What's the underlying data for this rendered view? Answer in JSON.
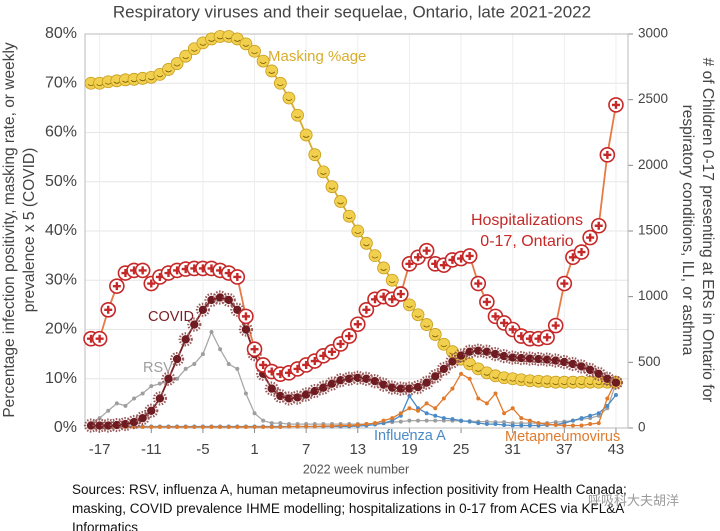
{
  "chart_data": {
    "type": "line",
    "title": "Respiratory viruses and their sequelae, Ontario, late 2021-2022",
    "x_label": "2022 week number",
    "y_label": "Percentage infection positivity, masking rate, or weekly prevalence x 5 (COVID)",
    "y2_label": "# of Children 0-17 presenting at ERs in Ontario for respiratory conditions, ILI, or asthma",
    "source": "Sources: RSV, influenza A, human metapneumovirus infection positivity from Health Canada; masking, COVID prevalence IHME modelling; hospitalizations in 0-17 from ACES via KFL&A Informatics",
    "watermark": "呼吸科大夫胡洋",
    "grid": true,
    "xlim": [
      -18.7,
      44.4
    ],
    "xticks": [
      -17,
      -11,
      -5,
      1,
      7,
      13,
      19,
      25,
      31,
      37,
      43
    ],
    "ylim": [
      0,
      80
    ],
    "yticks": [
      {
        "value": 0,
        "label": "0%"
      },
      {
        "value": 10,
        "label": "10%"
      },
      {
        "value": 20,
        "label": "20%"
      },
      {
        "value": 30,
        "label": "30%"
      },
      {
        "value": 40,
        "label": "40%"
      },
      {
        "value": 50,
        "label": "50%"
      },
      {
        "value": 60,
        "label": "60%"
      },
      {
        "value": 70,
        "label": "70%"
      },
      {
        "value": 80,
        "label": "80%"
      }
    ],
    "y2lim": [
      0,
      3000
    ],
    "y2ticks": [
      0,
      500,
      1000,
      1500,
      2000,
      2500,
      3000
    ],
    "x": [
      -18,
      -17,
      -16,
      -15,
      -14,
      -13,
      -12,
      -11,
      -10,
      -9,
      -8,
      -7,
      -6,
      -5,
      -4,
      -3,
      -2,
      -1,
      0,
      1,
      2,
      3,
      4,
      5,
      6,
      7,
      8,
      9,
      10,
      11,
      12,
      13,
      14,
      15,
      16,
      17,
      18,
      19,
      20,
      21,
      22,
      23,
      24,
      25,
      26,
      27,
      28,
      29,
      30,
      31,
      32,
      33,
      34,
      35,
      36,
      37,
      38,
      39,
      40,
      41,
      42,
      43
    ],
    "series": [
      {
        "name": "Masking %age",
        "color": "#d9ad2c",
        "values": [
          70,
          70,
          70.3,
          70.5,
          70.7,
          70.8,
          71,
          71.2,
          71.8,
          72.8,
          74,
          75.5,
          77,
          78.2,
          79,
          79.5,
          79.5,
          79,
          78,
          76.5,
          74.5,
          72.5,
          70,
          67,
          63.5,
          59.5,
          55.5,
          52,
          49,
          46,
          43,
          40,
          37.5,
          35,
          32.5,
          30,
          27.5,
          25,
          23,
          21,
          19,
          17,
          15.5,
          14,
          13,
          12,
          11.2,
          10.6,
          10.2,
          10,
          9.8,
          9.6,
          9.5,
          9.4,
          9.3,
          9.3,
          9.3,
          9.3,
          9.3,
          9.3,
          9.3,
          9.3
        ]
      },
      {
        "name": "COVID",
        "color": "#7a1f24",
        "values": [
          0.5,
          0.5,
          0.5,
          0.6,
          0.8,
          1.2,
          2,
          3.5,
          6,
          10,
          14,
          18,
          21,
          24,
          26,
          26.5,
          26,
          24,
          20,
          15,
          11,
          8,
          6.5,
          6,
          6.2,
          6.8,
          7.5,
          8.2,
          9,
          9.7,
          10,
          10.2,
          10,
          9.5,
          8.8,
          8.2,
          8,
          8,
          8.3,
          9.2,
          10.5,
          12,
          13.5,
          14.7,
          15.5,
          15.7,
          15.5,
          15,
          14.6,
          14.3,
          14.2,
          14.1,
          14,
          13.9,
          13.7,
          13.4,
          13,
          12.5,
          11.8,
          11,
          10,
          9.2
        ]
      },
      {
        "name": "RSV",
        "color": "#9e9e9e",
        "values": [
          1,
          2,
          3.5,
          5,
          4.5,
          6,
          7,
          8.5,
          9,
          9.5,
          10,
          12,
          13,
          15,
          19.5,
          16,
          13,
          12,
          7,
          3,
          1.5,
          1,
          1,
          0.8,
          0.8,
          0.8,
          0.8,
          0.8,
          0.8,
          0.8,
          0.8,
          0.8,
          0.8,
          1,
          1,
          1.2,
          1.3,
          1.5,
          1.5,
          1.5,
          1.5,
          1.5,
          1.5,
          1.4,
          1.4,
          1.3,
          1.3,
          1.2,
          1.2,
          1,
          1,
          1,
          1,
          1,
          1.2,
          1.3,
          1.5,
          1.8,
          2,
          2.5,
          4,
          9
        ]
      },
      {
        "name": "Influenza A",
        "color": "#4a8ac6",
        "values": [
          0.3,
          0.3,
          0.3,
          0.3,
          0.3,
          0.3,
          0.3,
          0.3,
          0.3,
          0.3,
          0.3,
          0.3,
          0.3,
          0.3,
          0.3,
          0.3,
          0.3,
          0.3,
          0.3,
          0.3,
          0.3,
          0.3,
          0.3,
          0.3,
          0.3,
          0.3,
          0.3,
          0.3,
          0.3,
          0.3,
          0.3,
          0.4,
          0.5,
          0.7,
          1,
          1.5,
          2.5,
          6.5,
          4,
          3,
          2.5,
          2,
          1.8,
          1.5,
          1.3,
          1,
          0.8,
          0.8,
          0.6,
          0.5,
          0.5,
          0.5,
          0.5,
          0.6,
          0.7,
          1,
          1.5,
          2,
          2.5,
          3,
          4.5,
          6.7
        ]
      },
      {
        "name": "Metapneumovirus",
        "color": "#e07a2c",
        "values": [
          0.2,
          0.2,
          0.2,
          0.2,
          0.2,
          0.2,
          0.2,
          0.2,
          0.2,
          0.2,
          0.2,
          0.2,
          0.2,
          0.2,
          0.2,
          0.2,
          0.2,
          0.2,
          0.2,
          0.2,
          0.2,
          0.2,
          0.2,
          0.3,
          0.3,
          0.3,
          0.3,
          0.4,
          0.4,
          0.5,
          0.5,
          0.6,
          0.8,
          1,
          1.5,
          2,
          3,
          4,
          3.5,
          5,
          4,
          6,
          8,
          11,
          10,
          6,
          5,
          7,
          3,
          4,
          2,
          1.5,
          1,
          0.8,
          0.6,
          0.5,
          0.5,
          0.5,
          0.8,
          1,
          6,
          9.5
        ]
      },
      {
        "name": "Hospitalizations 0-17, Ontario",
        "color": "#d32f2f",
        "axis": "y2",
        "values": [
          680,
          680,
          900,
          1080,
          1180,
          1200,
          1200,
          1100,
          1150,
          1180,
          1200,
          1210,
          1215,
          1215,
          1215,
          1200,
          1180,
          1150,
          850,
          600,
          480,
          430,
          410,
          420,
          450,
          480,
          510,
          550,
          580,
          640,
          700,
          790,
          900,
          980,
          1000,
          980,
          1020,
          1250,
          1300,
          1350,
          1250,
          1240,
          1280,
          1290,
          1310,
          1100,
          960,
          850,
          800,
          750,
          700,
          680,
          680,
          690,
          780,
          1100,
          1300,
          1340,
          1450,
          1540,
          2080,
          2460
        ]
      }
    ]
  }
}
